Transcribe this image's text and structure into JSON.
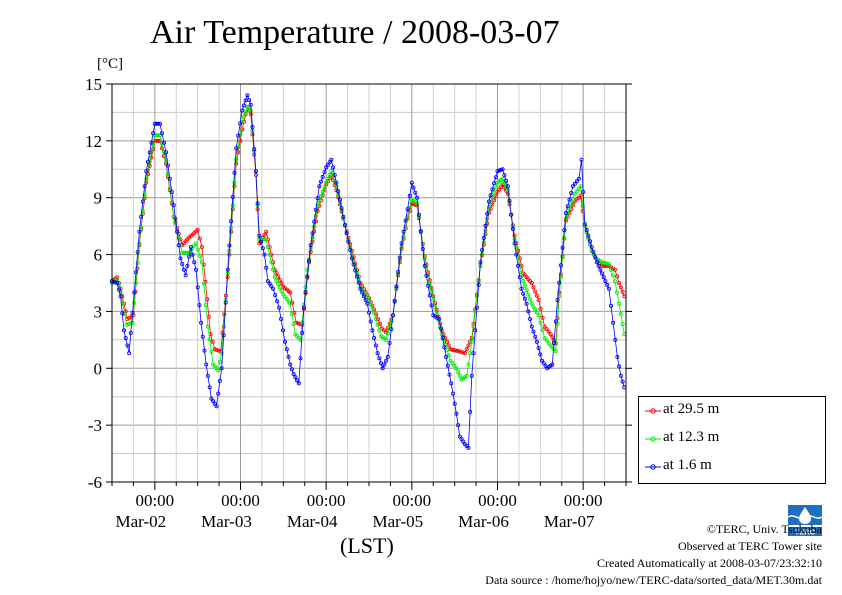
{
  "page": {
    "title": "Air Temperature / 2008-03-07",
    "unit": "[°C]",
    "xlabel": "(LST)"
  },
  "legend": {
    "items": [
      {
        "label": "at 29.5 m",
        "color": "#ff0000"
      },
      {
        "label": "at 12.3 m",
        "color": "#00ee00"
      },
      {
        "label": "at 1.6 m",
        "color": "#0000ff"
      }
    ]
  },
  "footer": {
    "copyright": "©TERC, Univ. Tsukuba",
    "observed": "Observed at TERC Tower site",
    "created": "Created Automatically at 2008-03-07/23:32:10",
    "source": "Data source : /home/hojyo/new/TERC-data/sorted_data/MET.30m.dat"
  },
  "logo": {
    "text": "TERC",
    "color": "#1f6fc0"
  },
  "chart_data": {
    "type": "line",
    "title": "Air Temperature / 2008-03-07",
    "xlabel": "(LST)",
    "ylabel": "[°C]",
    "ylim": [
      -6,
      15
    ],
    "yticks": [
      -6,
      -3,
      0,
      3,
      6,
      9,
      12,
      15
    ],
    "xlim_days": [
      0,
      6
    ],
    "x_unit": "days from 2008-03-01 12:00 LST",
    "x_tick_labels": [
      {
        "x": 0.5,
        "time": "00:00",
        "date": "Mar-02"
      },
      {
        "x": 1.5,
        "time": "00:00",
        "date": "Mar-03"
      },
      {
        "x": 2.5,
        "time": "00:00",
        "date": "Mar-04"
      },
      {
        "x": 3.5,
        "time": "00:00",
        "date": "Mar-05"
      },
      {
        "x": 4.5,
        "time": "00:00",
        "date": "Mar-06"
      },
      {
        "x": 5.5,
        "time": "00:00",
        "date": "Mar-07"
      }
    ],
    "grid": true,
    "legend_position": "bottom-right outside",
    "series": [
      {
        "name": "at 29.5 m",
        "color": "#ff0000",
        "points": [
          [
            0,
            4.6
          ],
          [
            0.06,
            4.8
          ],
          [
            0.1,
            4.2
          ],
          [
            0.18,
            2.6
          ],
          [
            0.25,
            2.8
          ],
          [
            0.32,
            6.5
          ],
          [
            0.4,
            9.8
          ],
          [
            0.5,
            12.0
          ],
          [
            0.56,
            12.0
          ],
          [
            0.63,
            10.8
          ],
          [
            0.72,
            8.0
          ],
          [
            0.82,
            6.5
          ],
          [
            0.9,
            6.9
          ],
          [
            1.0,
            7.3
          ],
          [
            1.05,
            6.4
          ],
          [
            1.15,
            1.8
          ],
          [
            1.2,
            1.0
          ],
          [
            1.27,
            0.9
          ],
          [
            1.35,
            4.8
          ],
          [
            1.45,
            10.8
          ],
          [
            1.52,
            12.6
          ],
          [
            1.58,
            13.8
          ],
          [
            1.62,
            13.4
          ],
          [
            1.68,
            10.2
          ],
          [
            1.72,
            6.6
          ],
          [
            1.8,
            7.2
          ],
          [
            1.9,
            5.2
          ],
          [
            2.0,
            4.3
          ],
          [
            2.08,
            4.0
          ],
          [
            2.15,
            2.4
          ],
          [
            2.22,
            2.3
          ],
          [
            2.3,
            5.6
          ],
          [
            2.4,
            8.3
          ],
          [
            2.5,
            9.7
          ],
          [
            2.56,
            10.2
          ],
          [
            2.62,
            9.4
          ],
          [
            2.7,
            7.9
          ],
          [
            2.8,
            6.2
          ],
          [
            2.9,
            4.5
          ],
          [
            3.0,
            3.7
          ],
          [
            3.06,
            3.1
          ],
          [
            3.15,
            2.1
          ],
          [
            3.2,
            1.9
          ],
          [
            3.28,
            2.8
          ],
          [
            3.38,
            6.3
          ],
          [
            3.45,
            7.9
          ],
          [
            3.5,
            8.7
          ],
          [
            3.56,
            8.6
          ],
          [
            3.65,
            5.9
          ],
          [
            3.75,
            3.8
          ],
          [
            3.85,
            2.0
          ],
          [
            3.95,
            1.0
          ],
          [
            4.05,
            0.9
          ],
          [
            4.12,
            0.8
          ],
          [
            4.2,
            1.6
          ],
          [
            4.3,
            5.4
          ],
          [
            4.4,
            8.2
          ],
          [
            4.5,
            9.3
          ],
          [
            4.56,
            9.7
          ],
          [
            4.62,
            9.2
          ],
          [
            4.7,
            7.0
          ],
          [
            4.8,
            5.0
          ],
          [
            4.9,
            4.5
          ],
          [
            4.98,
            3.6
          ],
          [
            5.05,
            2.2
          ],
          [
            5.12,
            1.8
          ],
          [
            5.18,
            1.3
          ],
          [
            5.22,
            4.0
          ],
          [
            5.3,
            7.8
          ],
          [
            5.4,
            8.8
          ],
          [
            5.47,
            9.1
          ],
          [
            5.52,
            7.5
          ],
          [
            5.6,
            6.2
          ],
          [
            5.65,
            5.8
          ],
          [
            5.72,
            5.4
          ],
          [
            5.8,
            5.4
          ],
          [
            5.87,
            5.2
          ],
          [
            5.92,
            4.5
          ],
          [
            5.98,
            3.8
          ]
        ]
      },
      {
        "name": "at 12.3 m",
        "color": "#00ee00",
        "points": [
          [
            0,
            4.5
          ],
          [
            0.06,
            4.7
          ],
          [
            0.1,
            4.0
          ],
          [
            0.17,
            2.3
          ],
          [
            0.24,
            2.4
          ],
          [
            0.32,
            6.6
          ],
          [
            0.4,
            10.0
          ],
          [
            0.5,
            12.3
          ],
          [
            0.56,
            12.3
          ],
          [
            0.63,
            11.0
          ],
          [
            0.72,
            8.0
          ],
          [
            0.82,
            6.1
          ],
          [
            0.9,
            6.1
          ],
          [
            0.98,
            6.6
          ],
          [
            1.05,
            5.6
          ],
          [
            1.12,
            2.2
          ],
          [
            1.18,
            0.2
          ],
          [
            1.24,
            -0.1
          ],
          [
            1.28,
            0.8
          ],
          [
            1.35,
            5.0
          ],
          [
            1.45,
            11.0
          ],
          [
            1.52,
            13.0
          ],
          [
            1.58,
            13.8
          ],
          [
            1.62,
            13.6
          ],
          [
            1.68,
            10.4
          ],
          [
            1.72,
            6.8
          ],
          [
            1.8,
            6.8
          ],
          [
            1.9,
            4.8
          ],
          [
            2.0,
            3.9
          ],
          [
            2.08,
            3.4
          ],
          [
            2.14,
            1.8
          ],
          [
            2.2,
            1.5
          ],
          [
            2.28,
            5.2
          ],
          [
            2.4,
            8.6
          ],
          [
            2.5,
            9.8
          ],
          [
            2.56,
            10.4
          ],
          [
            2.62,
            9.6
          ],
          [
            2.7,
            7.9
          ],
          [
            2.8,
            6.0
          ],
          [
            2.9,
            4.3
          ],
          [
            3.0,
            3.6
          ],
          [
            3.06,
            2.9
          ],
          [
            3.14,
            1.7
          ],
          [
            3.2,
            1.5
          ],
          [
            3.28,
            2.8
          ],
          [
            3.38,
            6.4
          ],
          [
            3.45,
            8.0
          ],
          [
            3.5,
            8.9
          ],
          [
            3.56,
            8.7
          ],
          [
            3.65,
            5.8
          ],
          [
            3.75,
            3.6
          ],
          [
            3.85,
            1.8
          ],
          [
            3.95,
            0.4
          ],
          [
            4.02,
            0.0
          ],
          [
            4.08,
            -0.6
          ],
          [
            4.14,
            -0.4
          ],
          [
            4.2,
            1.4
          ],
          [
            4.3,
            5.4
          ],
          [
            4.4,
            8.5
          ],
          [
            4.5,
            9.8
          ],
          [
            4.56,
            10.0
          ],
          [
            4.62,
            9.4
          ],
          [
            4.7,
            6.8
          ],
          [
            4.8,
            4.6
          ],
          [
            4.9,
            3.4
          ],
          [
            4.98,
            2.8
          ],
          [
            5.05,
            1.6
          ],
          [
            5.12,
            1.2
          ],
          [
            5.18,
            0.9
          ],
          [
            5.22,
            3.8
          ],
          [
            5.3,
            7.9
          ],
          [
            5.4,
            9.2
          ],
          [
            5.47,
            9.6
          ],
          [
            5.52,
            7.5
          ],
          [
            5.6,
            6.2
          ],
          [
            5.65,
            5.8
          ],
          [
            5.72,
            5.6
          ],
          [
            5.8,
            5.5
          ],
          [
            5.87,
            4.6
          ],
          [
            5.92,
            3.4
          ],
          [
            5.98,
            1.8
          ]
        ]
      },
      {
        "name": "at 1.6 m",
        "color": "#0000ff",
        "points": [
          [
            0,
            4.6
          ],
          [
            0.06,
            4.5
          ],
          [
            0.1,
            3.8
          ],
          [
            0.14,
            2.0
          ],
          [
            0.18,
            1.2
          ],
          [
            0.2,
            0.8
          ],
          [
            0.26,
            4.0
          ],
          [
            0.32,
            7.2
          ],
          [
            0.4,
            10.4
          ],
          [
            0.5,
            12.9
          ],
          [
            0.56,
            12.9
          ],
          [
            0.63,
            11.4
          ],
          [
            0.72,
            8.6
          ],
          [
            0.8,
            5.8
          ],
          [
            0.86,
            4.9
          ],
          [
            0.92,
            6.4
          ],
          [
            0.98,
            5.2
          ],
          [
            1.04,
            2.4
          ],
          [
            1.1,
            0.2
          ],
          [
            1.16,
            -1.6
          ],
          [
            1.22,
            -2.0
          ],
          [
            1.28,
            0.0
          ],
          [
            1.35,
            5.2
          ],
          [
            1.45,
            11.6
          ],
          [
            1.52,
            13.6
          ],
          [
            1.58,
            14.4
          ],
          [
            1.62,
            13.9
          ],
          [
            1.68,
            10.4
          ],
          [
            1.72,
            7.0
          ],
          [
            1.78,
            6.0
          ],
          [
            1.82,
            4.6
          ],
          [
            1.88,
            4.2
          ],
          [
            1.95,
            3.2
          ],
          [
            2.02,
            1.4
          ],
          [
            2.08,
            0.2
          ],
          [
            2.12,
            -0.3
          ],
          [
            2.18,
            -0.8
          ],
          [
            2.24,
            3.2
          ],
          [
            2.32,
            6.5
          ],
          [
            2.42,
            9.6
          ],
          [
            2.5,
            10.6
          ],
          [
            2.56,
            11.0
          ],
          [
            2.62,
            9.8
          ],
          [
            2.7,
            8.0
          ],
          [
            2.8,
            5.8
          ],
          [
            2.9,
            4.2
          ],
          [
            2.98,
            3.4
          ],
          [
            3.04,
            2.0
          ],
          [
            3.1,
            0.8
          ],
          [
            3.16,
            0.0
          ],
          [
            3.22,
            0.6
          ],
          [
            3.28,
            2.8
          ],
          [
            3.38,
            6.6
          ],
          [
            3.45,
            8.4
          ],
          [
            3.5,
            9.8
          ],
          [
            3.56,
            9.0
          ],
          [
            3.65,
            5.4
          ],
          [
            3.75,
            2.8
          ],
          [
            3.82,
            2.6
          ],
          [
            3.9,
            0.6
          ],
          [
            3.96,
            -0.8
          ],
          [
            4.02,
            -2.4
          ],
          [
            4.06,
            -3.6
          ],
          [
            4.12,
            -4.0
          ],
          [
            4.16,
            -4.2
          ],
          [
            4.2,
            -0.4
          ],
          [
            4.3,
            5.6
          ],
          [
            4.4,
            8.8
          ],
          [
            4.5,
            10.4
          ],
          [
            4.56,
            10.5
          ],
          [
            4.62,
            9.6
          ],
          [
            4.7,
            6.6
          ],
          [
            4.78,
            4.2
          ],
          [
            4.84,
            3.4
          ],
          [
            4.9,
            2.2
          ],
          [
            4.96,
            1.4
          ],
          [
            5.02,
            0.4
          ],
          [
            5.08,
            0.0
          ],
          [
            5.14,
            0.2
          ],
          [
            5.2,
            3.6
          ],
          [
            5.3,
            8.2
          ],
          [
            5.38,
            9.6
          ],
          [
            5.45,
            10.0
          ],
          [
            5.48,
            11.0
          ],
          [
            5.52,
            7.6
          ],
          [
            5.6,
            6.4
          ],
          [
            5.66,
            5.6
          ],
          [
            5.72,
            5.0
          ],
          [
            5.8,
            4.2
          ],
          [
            5.85,
            2.4
          ],
          [
            5.9,
            0.6
          ],
          [
            5.94,
            -0.4
          ],
          [
            5.98,
            -1.0
          ]
        ]
      }
    ]
  }
}
